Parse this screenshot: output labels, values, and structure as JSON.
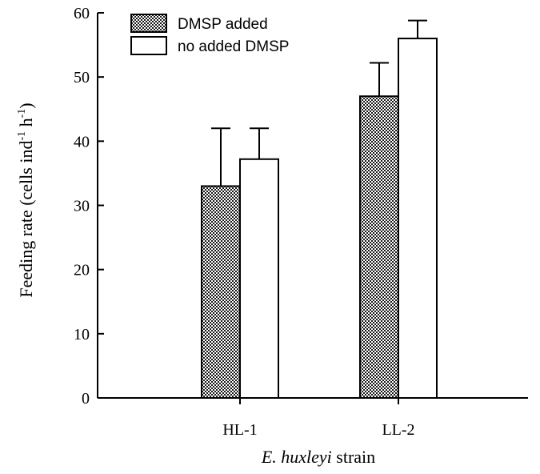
{
  "chart_data": {
    "type": "bar",
    "categories": [
      "HL-1",
      "LL-2"
    ],
    "series": [
      {
        "name": "DMSP added",
        "values": [
          33,
          47
        ],
        "errors": [
          9,
          5.2
        ],
        "fill": "crosshatch"
      },
      {
        "name": "no added DMSP",
        "values": [
          37.2,
          56
        ],
        "errors": [
          4.8,
          2.8
        ],
        "fill": "white"
      }
    ],
    "xlabel_italic": "E. huxleyi",
    "xlabel_rest": " strain",
    "ylabel_main": "Feeding rate (cells ind",
    "ylabel_sup1": "-1",
    "ylabel_mid": " h",
    "ylabel_sup2": "-1",
    "ylabel_end": ")",
    "ylim": [
      0,
      60
    ],
    "yticks": [
      0,
      10,
      20,
      30,
      40,
      50,
      60
    ],
    "legend_position": "top-left",
    "grid": false
  },
  "colors": {
    "axis": "#000000",
    "hatch_dark": "#000000",
    "bar_white": "#ffffff"
  }
}
